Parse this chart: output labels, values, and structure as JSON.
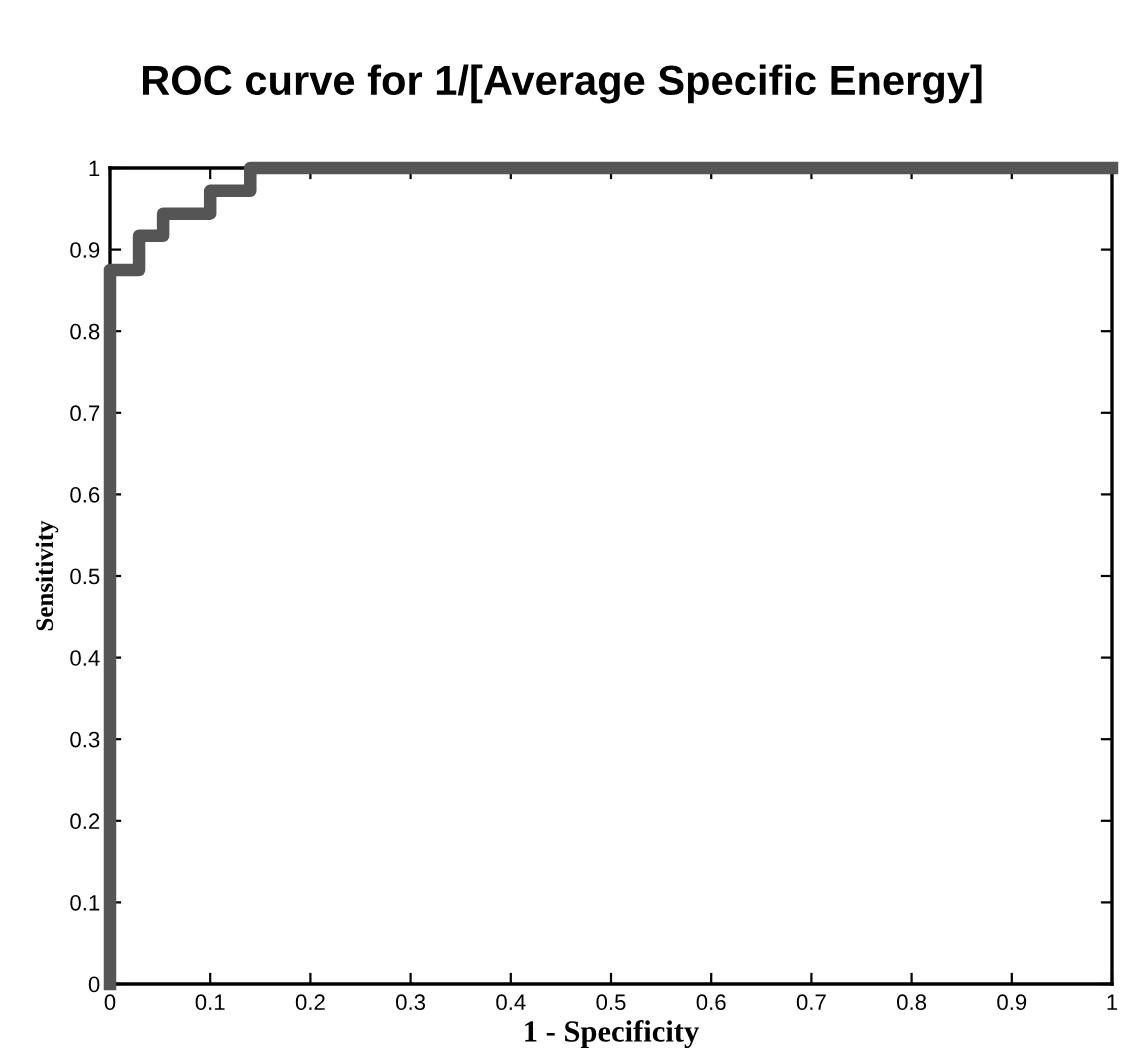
{
  "chart_data": {
    "type": "line",
    "title": "ROC curve for 1/[Average Specific Energy]",
    "xlabel": "1 - Specificity",
    "ylabel": "Sensitivity",
    "series": [
      {
        "color": "#555555",
        "x": [
          0,
          0,
          0.029,
          0.029,
          0.053,
          0.053,
          0.1,
          0.1,
          0.14,
          0.14,
          1
        ],
        "values": [
          0,
          0.875,
          0.875,
          0.917,
          0.917,
          0.944,
          0.944,
          0.972,
          0.972,
          1,
          1
        ]
      }
    ],
    "xlim": [
      0,
      1
    ],
    "ylim": [
      0,
      1
    ],
    "xticks": [
      0,
      0.1,
      0.2,
      0.3,
      0.4,
      0.5,
      0.6,
      0.7,
      0.8,
      0.9,
      1
    ],
    "yticks": [
      0,
      0.1,
      0.2,
      0.3,
      0.4,
      0.5,
      0.6,
      0.7,
      0.8,
      0.9,
      1
    ],
    "grid": false,
    "legend": false,
    "marker": "none",
    "line_style": "solid"
  }
}
